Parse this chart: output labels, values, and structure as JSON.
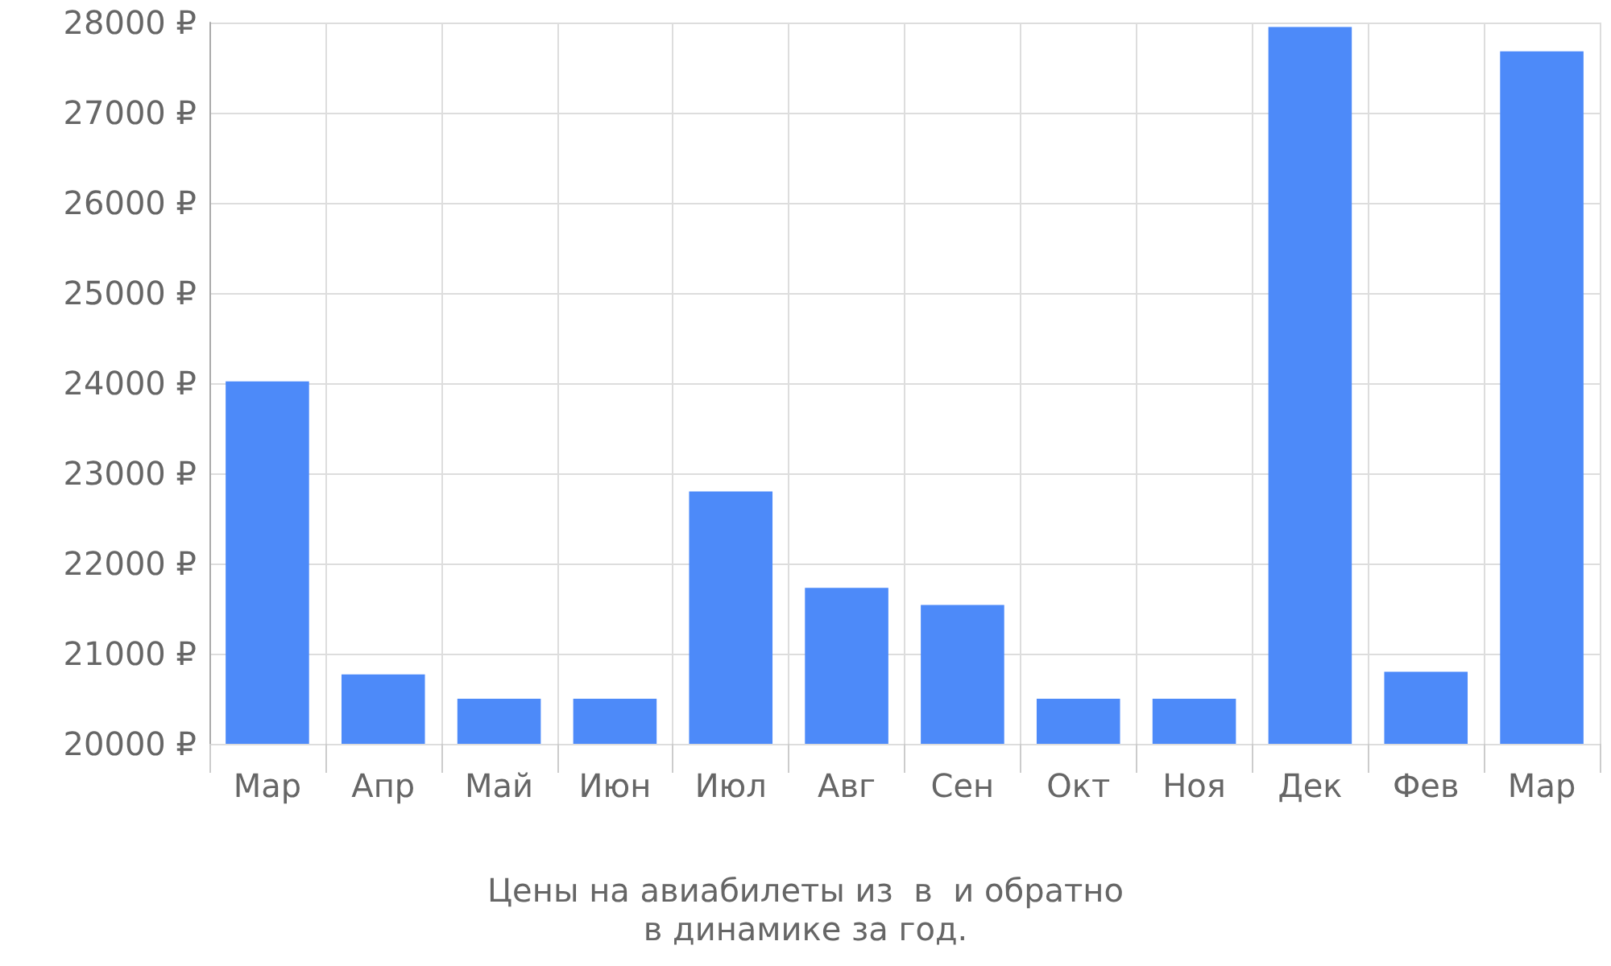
{
  "chart_data": {
    "type": "bar",
    "title": "Цены на авиабилеты из  в  и обратно",
    "subtitle": "в динамике за год.",
    "categories": [
      "Мар",
      "Апр",
      "Май",
      "Июн",
      "Июл",
      "Авг",
      "Сен",
      "Окт",
      "Ноя",
      "Дек",
      "Фев",
      "Мар"
    ],
    "values": [
      24020,
      20770,
      20500,
      20500,
      22800,
      21730,
      21540,
      20500,
      20500,
      27950,
      20800,
      27680
    ],
    "color": "#4d8af9",
    "ylim": [
      20000,
      28000
    ],
    "yticks": [
      {
        "value": 20000,
        "label": "20000 ₽"
      },
      {
        "value": 21000,
        "label": "21000 ₽"
      },
      {
        "value": 22000,
        "label": "22000 ₽"
      },
      {
        "value": 23000,
        "label": "23000 ₽"
      },
      {
        "value": 24000,
        "label": "24000 ₽"
      },
      {
        "value": 25000,
        "label": "25000 ₽"
      },
      {
        "value": 26000,
        "label": "26000 ₽"
      },
      {
        "value": 27000,
        "label": "27000 ₽"
      },
      {
        "value": 28000,
        "label": "28000 ₽"
      }
    ],
    "grid": true
  }
}
